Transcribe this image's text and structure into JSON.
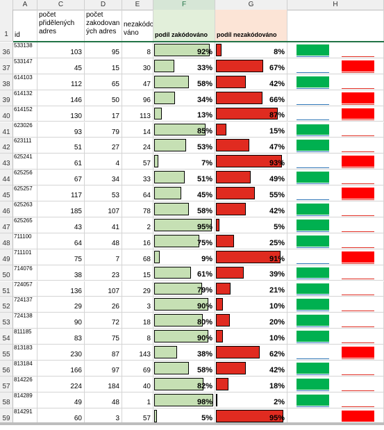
{
  "columns": [
    "A",
    "C",
    "D",
    "E",
    "F",
    "G",
    "H"
  ],
  "header_row_number": "1",
  "headers": {
    "id": "id",
    "assigned": "počet\npřidělených\nadres",
    "coded": "počet\nzakodovan\ných adres",
    "uncoded": "nezakódo\nváno",
    "share_coded": "podíl zakódováno",
    "share_uncoded": "podíl nezakódováno"
  },
  "colors": {
    "coded_bar": "#c6e0b4",
    "uncoded_bar": "#e02b20",
    "indicator_green": "#00b050",
    "indicator_red": "#ff0000"
  },
  "rows": [
    {
      "row": "36",
      "id": "533138",
      "assigned": "103",
      "coded": "95",
      "uncoded": "8",
      "coded_pct": "92%",
      "uncoded_pct": "8%",
      "coded_frac": 0.92,
      "indicator": "green"
    },
    {
      "row": "37",
      "id": "533147",
      "assigned": "45",
      "coded": "15",
      "uncoded": "30",
      "coded_pct": "33%",
      "uncoded_pct": "67%",
      "coded_frac": 0.33,
      "indicator": "red"
    },
    {
      "row": "38",
      "id": "614103",
      "assigned": "112",
      "coded": "65",
      "uncoded": "47",
      "coded_pct": "58%",
      "uncoded_pct": "42%",
      "coded_frac": 0.58,
      "indicator": "green"
    },
    {
      "row": "39",
      "id": "614132",
      "assigned": "146",
      "coded": "50",
      "uncoded": "96",
      "coded_pct": "34%",
      "uncoded_pct": "66%",
      "coded_frac": 0.34,
      "indicator": "red"
    },
    {
      "row": "40",
      "id": "614152",
      "assigned": "130",
      "coded": "17",
      "uncoded": "113",
      "coded_pct": "13%",
      "uncoded_pct": "87%",
      "coded_frac": 0.13,
      "indicator": "red"
    },
    {
      "row": "41",
      "id": "623026",
      "assigned": "93",
      "coded": "79",
      "uncoded": "14",
      "coded_pct": "85%",
      "uncoded_pct": "15%",
      "coded_frac": 0.85,
      "indicator": "green"
    },
    {
      "row": "42",
      "id": "623111",
      "assigned": "51",
      "coded": "27",
      "uncoded": "24",
      "coded_pct": "53%",
      "uncoded_pct": "47%",
      "coded_frac": 0.53,
      "indicator": "green"
    },
    {
      "row": "43",
      "id": "625241",
      "assigned": "61",
      "coded": "4",
      "uncoded": "57",
      "coded_pct": "7%",
      "uncoded_pct": "93%",
      "coded_frac": 0.07,
      "indicator": "red"
    },
    {
      "row": "44",
      "id": "625256",
      "assigned": "67",
      "coded": "34",
      "uncoded": "33",
      "coded_pct": "51%",
      "uncoded_pct": "49%",
      "coded_frac": 0.51,
      "indicator": "green"
    },
    {
      "row": "45",
      "id": "625257",
      "assigned": "117",
      "coded": "53",
      "uncoded": "64",
      "coded_pct": "45%",
      "uncoded_pct": "55%",
      "coded_frac": 0.45,
      "indicator": "red"
    },
    {
      "row": "46",
      "id": "625263",
      "assigned": "185",
      "coded": "107",
      "uncoded": "78",
      "coded_pct": "58%",
      "uncoded_pct": "42%",
      "coded_frac": 0.58,
      "indicator": "green"
    },
    {
      "row": "47",
      "id": "625265",
      "assigned": "43",
      "coded": "41",
      "uncoded": "2",
      "coded_pct": "95%",
      "uncoded_pct": "5%",
      "coded_frac": 0.95,
      "indicator": "green"
    },
    {
      "row": "48",
      "id": "711100",
      "assigned": "64",
      "coded": "48",
      "uncoded": "16",
      "coded_pct": "75%",
      "uncoded_pct": "25%",
      "coded_frac": 0.75,
      "indicator": "green"
    },
    {
      "row": "49",
      "id": "711101",
      "assigned": "75",
      "coded": "7",
      "uncoded": "68",
      "coded_pct": "9%",
      "uncoded_pct": "91%",
      "coded_frac": 0.09,
      "indicator": "red"
    },
    {
      "row": "50",
      "id": "714076",
      "assigned": "38",
      "coded": "23",
      "uncoded": "15",
      "coded_pct": "61%",
      "uncoded_pct": "39%",
      "coded_frac": 0.61,
      "indicator": "green"
    },
    {
      "row": "51",
      "id": "724057",
      "assigned": "136",
      "coded": "107",
      "uncoded": "29",
      "coded_pct": "79%",
      "uncoded_pct": "21%",
      "coded_frac": 0.79,
      "indicator": "green"
    },
    {
      "row": "52",
      "id": "724137",
      "assigned": "29",
      "coded": "26",
      "uncoded": "3",
      "coded_pct": "90%",
      "uncoded_pct": "10%",
      "coded_frac": 0.9,
      "indicator": "green"
    },
    {
      "row": "53",
      "id": "724138",
      "assigned": "90",
      "coded": "72",
      "uncoded": "18",
      "coded_pct": "80%",
      "uncoded_pct": "20%",
      "coded_frac": 0.8,
      "indicator": "green"
    },
    {
      "row": "54",
      "id": "811185",
      "assigned": "83",
      "coded": "75",
      "uncoded": "8",
      "coded_pct": "90%",
      "uncoded_pct": "10%",
      "coded_frac": 0.9,
      "indicator": "green"
    },
    {
      "row": "55",
      "id": "813183",
      "assigned": "230",
      "coded": "87",
      "uncoded": "143",
      "coded_pct": "38%",
      "uncoded_pct": "62%",
      "coded_frac": 0.38,
      "indicator": "red"
    },
    {
      "row": "56",
      "id": "813184",
      "assigned": "166",
      "coded": "97",
      "uncoded": "69",
      "coded_pct": "58%",
      "uncoded_pct": "42%",
      "coded_frac": 0.58,
      "indicator": "green"
    },
    {
      "row": "57",
      "id": "814226",
      "assigned": "224",
      "coded": "184",
      "uncoded": "40",
      "coded_pct": "82%",
      "uncoded_pct": "18%",
      "coded_frac": 0.82,
      "indicator": "green"
    },
    {
      "row": "58",
      "id": "814289",
      "assigned": "49",
      "coded": "48",
      "uncoded": "1",
      "coded_pct": "98%",
      "uncoded_pct": "2%",
      "coded_frac": 0.98,
      "indicator": "green"
    },
    {
      "row": "59",
      "id": "814291",
      "assigned": "60",
      "coded": "3",
      "uncoded": "57",
      "coded_pct": "5%",
      "uncoded_pct": "95%",
      "coded_frac": 0.05,
      "indicator": "red"
    }
  ]
}
